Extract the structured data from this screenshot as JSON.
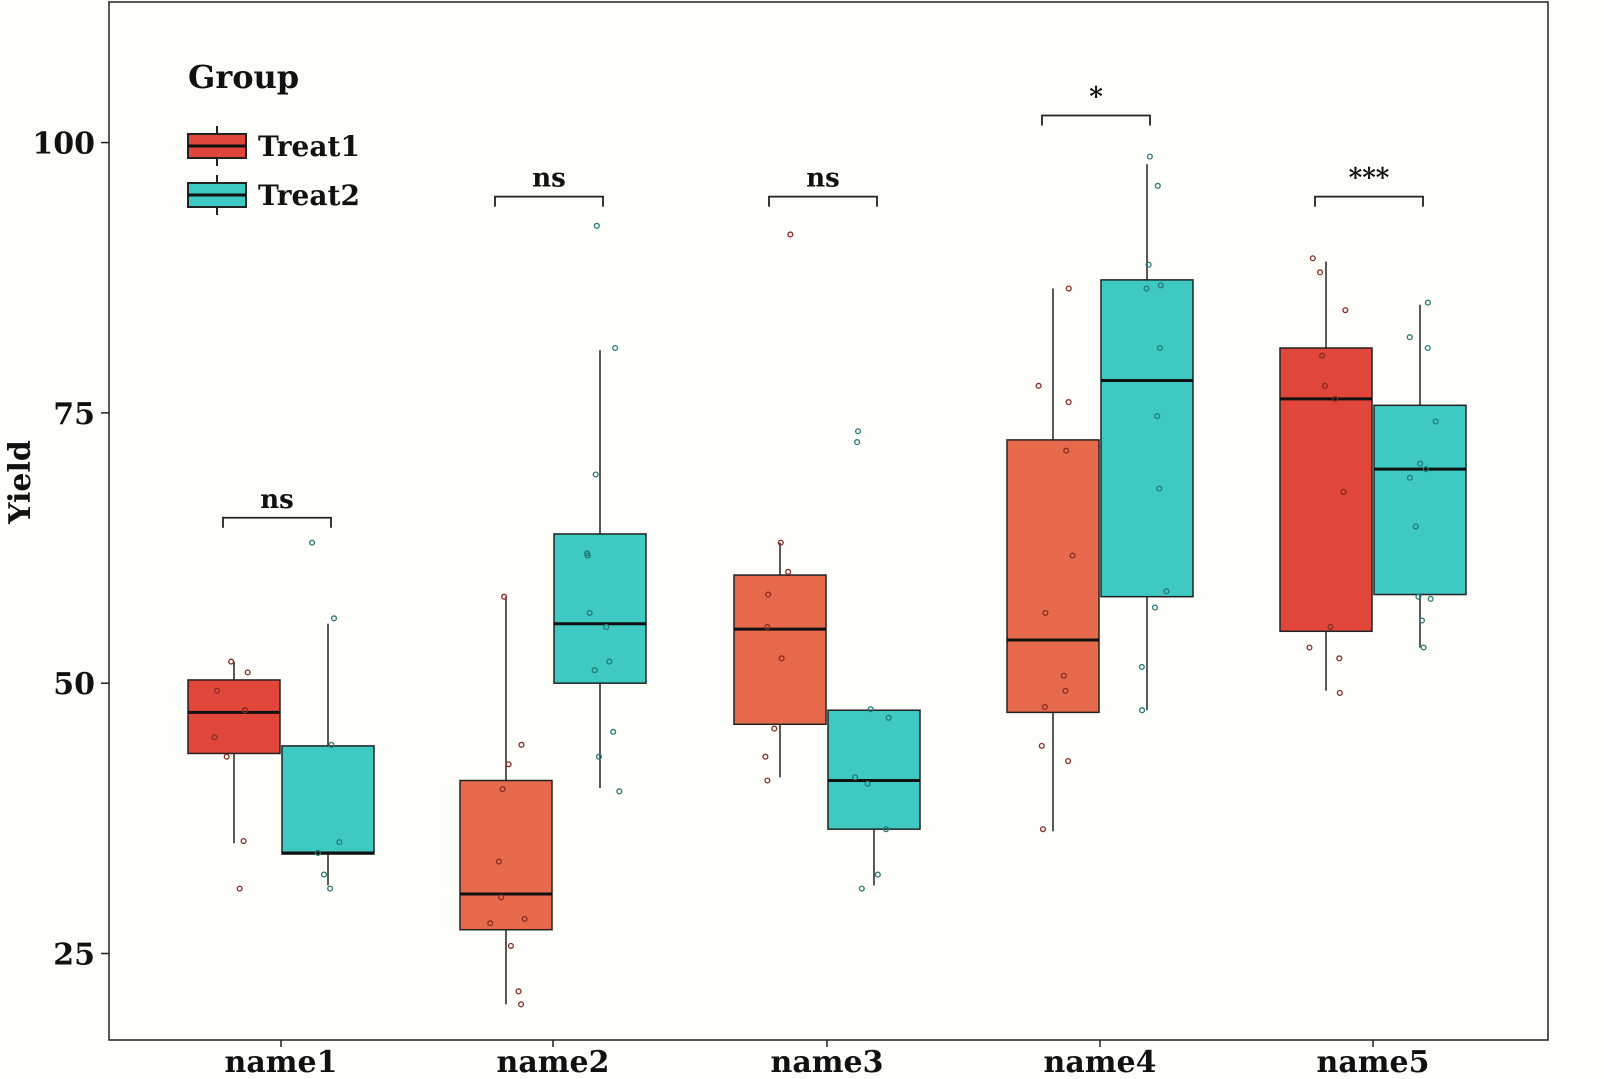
{
  "chart_data": {
    "type": "box",
    "title": "",
    "xlabel": "",
    "ylabel": "Yield",
    "ylim": [
      17,
      113
    ],
    "yticks": [
      25,
      50,
      75,
      100
    ],
    "categories": [
      "name1",
      "name2",
      "name3",
      "name4",
      "name5"
    ],
    "legend": {
      "title": "Group",
      "position": "top-left"
    },
    "series": [
      {
        "name": "Treat1",
        "color": "#e0473a",
        "boxes": [
          {
            "q1": 43.5,
            "median": 47.3,
            "q3": 50.3,
            "whisker_low": 35.2,
            "whisker_high": 52.0,
            "points": [
              52.0,
              51.0,
              49.3,
              47.5,
              45.0,
              43.2,
              35.4,
              31.0
            ]
          },
          {
            "q1": 27.2,
            "median": 30.5,
            "q3": 41.0,
            "whisker_low": 20.3,
            "whisker_high": 58.0,
            "points": [
              58.0,
              44.3,
              42.5,
              40.2,
              33.5,
              30.2,
              28.2,
              27.8,
              25.7,
              21.5,
              20.3
            ]
          },
          {
            "q1": 46.2,
            "median": 55.0,
            "q3": 60.0,
            "whisker_low": 41.3,
            "whisker_high": 63.0,
            "points": [
              91.5,
              63.0,
              60.3,
              58.2,
              55.2,
              52.3,
              45.8,
              43.2,
              41.0
            ]
          },
          {
            "q1": 47.3,
            "median": 54.0,
            "q3": 72.5,
            "whisker_low": 36.3,
            "whisker_high": 86.5,
            "points": [
              86.5,
              77.5,
              76.0,
              71.5,
              61.8,
              56.5,
              50.7,
              49.3,
              47.8,
              44.2,
              42.8,
              36.5
            ]
          },
          {
            "q1": 54.8,
            "median": 76.3,
            "q3": 81.0,
            "whisker_low": 49.3,
            "whisker_high": 89.0,
            "points": [
              89.3,
              88.0,
              84.5,
              80.3,
              77.5,
              76.3,
              67.7,
              55.2,
              53.3,
              52.3,
              49.1
            ]
          }
        ]
      },
      {
        "name": "Treat2",
        "color": "#3ec9c2",
        "boxes": [
          {
            "q1": 34.2,
            "median": 34.3,
            "q3": 44.2,
            "whisker_low": 31.3,
            "whisker_high": 55.5,
            "points": [
              63.0,
              56.0,
              44.3,
              35.3,
              34.3,
              32.3,
              31.0
            ]
          },
          {
            "q1": 50.0,
            "median": 55.5,
            "q3": 63.8,
            "whisker_low": 40.3,
            "whisker_high": 80.8,
            "points": [
              92.3,
              81.0,
              69.3,
              62.0,
              61.8,
              56.5,
              55.2,
              52.0,
              51.2,
              45.5,
              43.2,
              40.0
            ]
          },
          {
            "q1": 36.5,
            "median": 41.0,
            "q3": 47.5,
            "whisker_low": 31.3,
            "whisker_high": 47.5,
            "points": [
              73.3,
              72.3,
              47.6,
              46.8,
              41.3,
              40.7,
              36.5,
              32.3,
              31.0
            ]
          },
          {
            "q1": 58.0,
            "median": 78.0,
            "q3": 87.3,
            "whisker_low": 47.5,
            "whisker_high": 98.0,
            "points": [
              98.7,
              96.0,
              88.7,
              86.8,
              86.5,
              81.0,
              74.7,
              68.0,
              58.5,
              57.0,
              51.5,
              47.5
            ]
          },
          {
            "q1": 58.2,
            "median": 69.8,
            "q3": 75.7,
            "whisker_low": 53.3,
            "whisker_high": 85.0,
            "points": [
              85.2,
              82.0,
              81.0,
              74.2,
              70.3,
              69.8,
              69.0,
              64.5,
              57.8,
              58.0,
              55.8,
              53.3
            ]
          }
        ]
      }
    ],
    "significance": [
      {
        "category": "name1",
        "label": "ns",
        "y": 65.3
      },
      {
        "category": "name2",
        "label": "ns",
        "y": 95.0
      },
      {
        "category": "name3",
        "label": "ns",
        "y": 95.0
      },
      {
        "category": "name4",
        "label": "*",
        "y": 102.5
      },
      {
        "category": "name5",
        "label": "***",
        "y": 95.0
      }
    ]
  }
}
